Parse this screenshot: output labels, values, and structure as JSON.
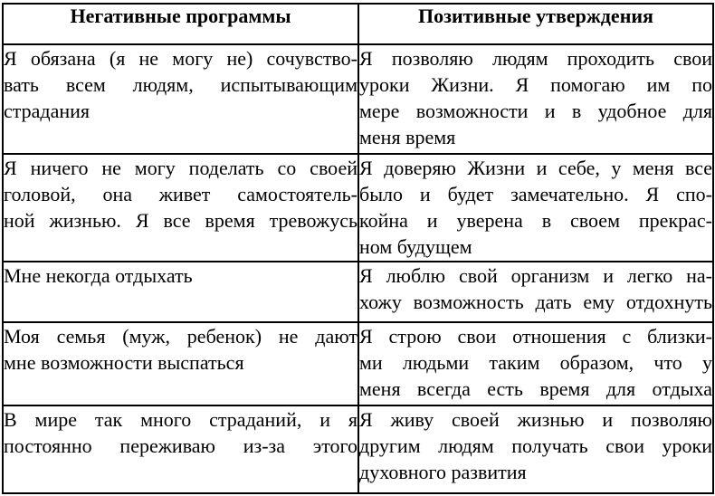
{
  "page": {
    "background_color": "#ffffff",
    "border_color": "#000000",
    "text_color": "#000000"
  },
  "table": {
    "columns": [
      {
        "header": "Негативные программы"
      },
      {
        "header": "Позитивные утверждения"
      }
    ],
    "rows": [
      {
        "negative": {
          "lines": [
            "Я обязана (я не могу не) сочувство-",
            "вать всем людям, испытывающим",
            "страдания"
          ],
          "full_width_last": false
        },
        "positive": {
          "lines": [
            "Я позволяю людям проходить свои",
            "уроки Жизни. Я помогаю им по",
            "мере возможности и в удобное для",
            "меня время"
          ],
          "full_width_last": false
        }
      },
      {
        "negative": {
          "lines": [
            "Я ничего не могу поделать со своей",
            "головой, она живет самостоятель-",
            "ной жизнью. Я все время тревожусь"
          ],
          "full_width_last": true
        },
        "positive": {
          "lines": [
            "Я доверяю Жизни и себе, у меня все",
            "было и будет замечательно. Я спо-",
            "койна и уверена в своем прекрас-",
            "ном будущем"
          ],
          "full_width_last": false
        }
      },
      {
        "negative": {
          "lines": [
            "Мне некогда отдыхать"
          ],
          "full_width_last": false
        },
        "positive": {
          "lines": [
            "Я люблю свой организм и легко на-",
            "хожу возможность дать ему отдохнуть"
          ],
          "full_width_last": true
        }
      },
      {
        "negative": {
          "lines": [
            "Моя семья (муж, ребенок) не дают",
            "мне возможности выспаться"
          ],
          "full_width_last": false
        },
        "positive": {
          "lines": [
            "Я строю свои отношения с близки-",
            "ми людьми таким образом, что у",
            "меня всегда есть время для отдыха"
          ],
          "full_width_last": true
        }
      },
      {
        "negative": {
          "lines": [
            "В мире так много страданий, и я",
            "постоянно переживаю из-за этого"
          ],
          "full_width_last": true
        },
        "positive": {
          "lines": [
            "Я живу своей жизнью и позволяю",
            "другим людям получать свои уроки",
            "духовного развития"
          ],
          "full_width_last": false
        }
      }
    ]
  }
}
